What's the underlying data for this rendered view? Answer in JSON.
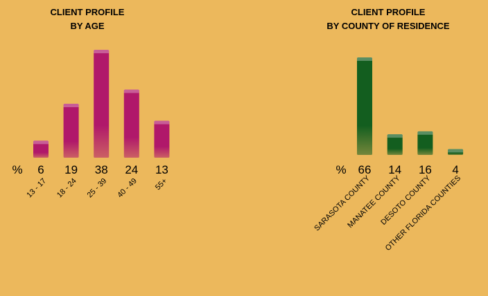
{
  "chart_data": [
    {
      "type": "bar",
      "title_lines": [
        "CLIENT PROFILE",
        "BY AGE"
      ],
      "unit_label": "%",
      "categories": [
        "13 - 17",
        "18 - 24",
        "25 - 39",
        "40 - 49",
        "55+"
      ],
      "values": [
        6,
        19,
        38,
        24,
        13
      ],
      "color": "#b0186a"
    },
    {
      "type": "bar",
      "title_lines": [
        "CLIENT PROFILE",
        "BY COUNTY OF RESIDENCE"
      ],
      "unit_label": "%",
      "categories": [
        "SARASOTA COUNTY",
        "MANATEE COUNTY",
        "DESOTO COUNTY",
        "OTHER FLORIDA COUNTIES"
      ],
      "values": [
        66,
        14,
        16,
        4
      ],
      "color": "#135e1f"
    }
  ]
}
